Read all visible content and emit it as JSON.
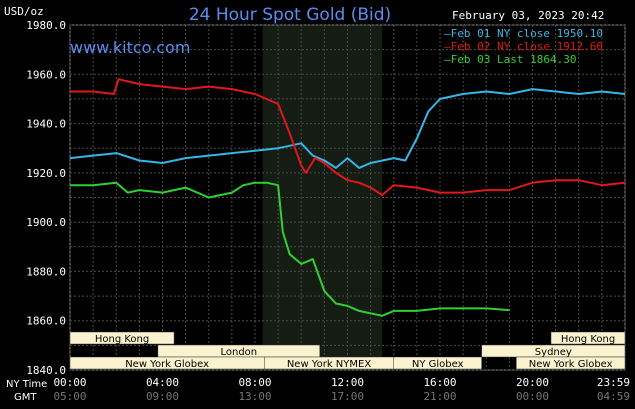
{
  "header": {
    "unit": "USD/oz",
    "title": "24 Hour Spot Gold (Bid)",
    "website": "www.kitco.com",
    "datetime": "February 03, 2023 20:42"
  },
  "legend": [
    {
      "label": "Feb 01 NY close 1950.10",
      "color": "#35b6e6"
    },
    {
      "label": "Feb 02 NY close 1912.60",
      "color": "#e01818"
    },
    {
      "label": "Feb 03 Last 1864.30",
      "color": "#30d030"
    }
  ],
  "axis": {
    "y_ticks": [
      "1980.0",
      "1960.0",
      "1940.0",
      "1920.0",
      "1900.0",
      "1880.0",
      "1860.0",
      "1840.0"
    ],
    "ny_label": "NY Time",
    "gmt_label": "GMT",
    "ny_ticks": [
      "00:00",
      "04:00",
      "08:00",
      "12:00",
      "16:00",
      "20:00",
      "23:59"
    ],
    "gmt_ticks": [
      "05:00",
      "09:00",
      "13:00",
      "17:00",
      "21:00",
      "00:00",
      "04:59"
    ]
  },
  "sessions": [
    {
      "label": "Hong Kong"
    },
    {
      "label": "London"
    },
    {
      "label": "New York Globex"
    },
    {
      "label": "New York NYMEX"
    },
    {
      "label": "NY Globex"
    },
    {
      "label": "Hong Kong"
    },
    {
      "label": "Sydney"
    },
    {
      "label": "New York Globex"
    }
  ],
  "colors": {
    "background": "#000000",
    "plot_background": "#000000",
    "shaded_session": "#141c14",
    "grid": "#4a4a4a",
    "title": "#5b8def",
    "session_box": "#fbf3cf"
  },
  "chart_data": {
    "type": "line",
    "title": "24 Hour Spot Gold (Bid)",
    "ylabel": "USD/oz",
    "ylim": [
      1840,
      1980
    ],
    "x_unit": "NY Time hours",
    "xlim": [
      0,
      24
    ],
    "grid": true,
    "legend_position": "top-right",
    "series": [
      {
        "name": "Feb 01 NY close 1950.10",
        "points": [
          [
            0,
            1926
          ],
          [
            1,
            1927
          ],
          [
            2,
            1928
          ],
          [
            3,
            1925
          ],
          [
            4,
            1924
          ],
          [
            5,
            1926
          ],
          [
            6,
            1927
          ],
          [
            7,
            1928
          ],
          [
            8,
            1929
          ],
          [
            9,
            1930
          ],
          [
            10,
            1932
          ],
          [
            10.5,
            1927
          ],
          [
            11,
            1925
          ],
          [
            11.5,
            1922
          ],
          [
            12,
            1926
          ],
          [
            12.5,
            1922
          ],
          [
            13,
            1924
          ],
          [
            14,
            1926
          ],
          [
            14.5,
            1925
          ],
          [
            15,
            1934
          ],
          [
            15.5,
            1945
          ],
          [
            16,
            1950
          ],
          [
            17,
            1952
          ],
          [
            18,
            1953
          ],
          [
            19,
            1952
          ],
          [
            20,
            1954
          ],
          [
            21,
            1953
          ],
          [
            22,
            1952
          ],
          [
            23,
            1953
          ],
          [
            24,
            1952
          ]
        ]
      },
      {
        "name": "Feb 02 NY close 1912.60",
        "points": [
          [
            0,
            1953
          ],
          [
            1,
            1953
          ],
          [
            1.9,
            1952
          ],
          [
            2.1,
            1958
          ],
          [
            3,
            1956
          ],
          [
            4,
            1955
          ],
          [
            5,
            1954
          ],
          [
            6,
            1955
          ],
          [
            7,
            1954
          ],
          [
            8,
            1952
          ],
          [
            9,
            1948
          ],
          [
            9.5,
            1936
          ],
          [
            10,
            1923
          ],
          [
            10.2,
            1920
          ],
          [
            10.6,
            1926
          ],
          [
            11,
            1924
          ],
          [
            11.5,
            1920
          ],
          [
            12,
            1917
          ],
          [
            12.5,
            1916
          ],
          [
            13,
            1914
          ],
          [
            13.5,
            1911
          ],
          [
            14,
            1915
          ],
          [
            15,
            1914
          ],
          [
            16,
            1912
          ],
          [
            17,
            1912
          ],
          [
            18,
            1913
          ],
          [
            19,
            1913
          ],
          [
            20,
            1916
          ],
          [
            21,
            1917
          ],
          [
            22,
            1917
          ],
          [
            23,
            1915
          ],
          [
            24,
            1916
          ]
        ]
      },
      {
        "name": "Feb 03 Last 1864.30",
        "points": [
          [
            0,
            1915
          ],
          [
            1,
            1915
          ],
          [
            2,
            1916
          ],
          [
            2.5,
            1912
          ],
          [
            3,
            1913
          ],
          [
            4,
            1912
          ],
          [
            5,
            1914
          ],
          [
            6,
            1910
          ],
          [
            7,
            1912
          ],
          [
            7.5,
            1915
          ],
          [
            8,
            1916
          ],
          [
            8.5,
            1916
          ],
          [
            9,
            1915
          ],
          [
            9.2,
            1896
          ],
          [
            9.5,
            1887
          ],
          [
            10,
            1883
          ],
          [
            10.5,
            1885
          ],
          [
            11,
            1872
          ],
          [
            11.5,
            1867
          ],
          [
            12,
            1866
          ],
          [
            12.5,
            1864
          ],
          [
            13,
            1863
          ],
          [
            13.5,
            1862
          ],
          [
            14,
            1864
          ],
          [
            15,
            1864
          ],
          [
            16,
            1865
          ],
          [
            17,
            1865
          ],
          [
            18,
            1865
          ],
          [
            19,
            1864.3
          ]
        ]
      }
    ]
  }
}
